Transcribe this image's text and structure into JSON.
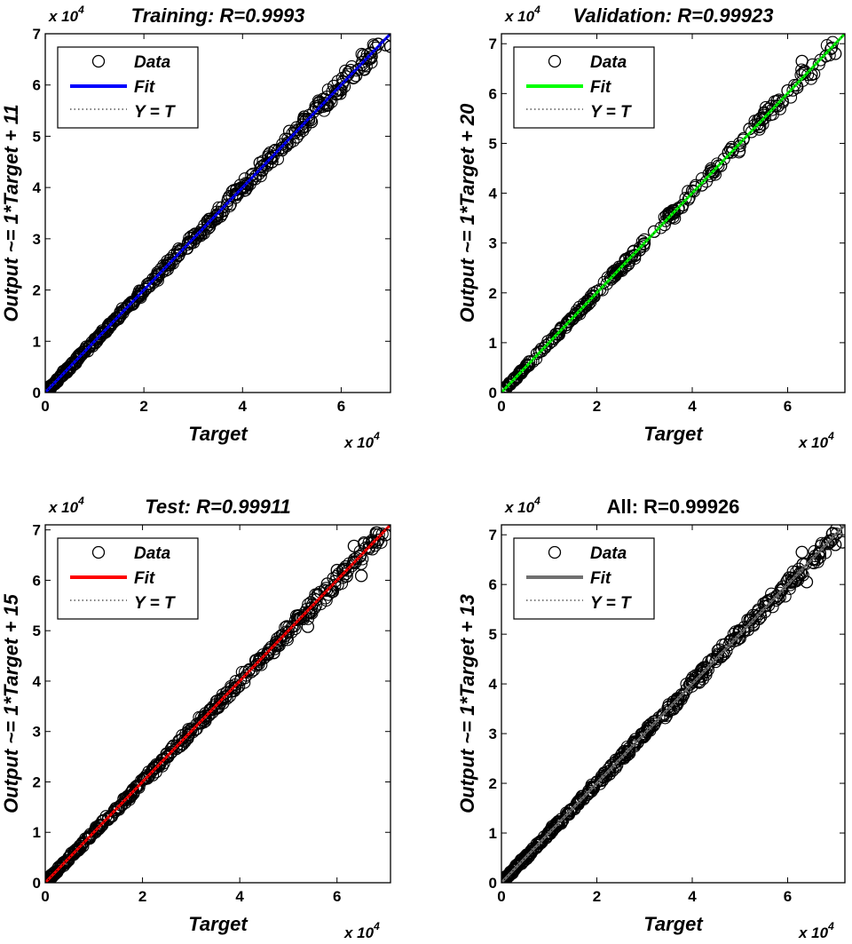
{
  "chart_data": [
    {
      "type": "scatter",
      "title": "Training: R=0.9993",
      "title_style": "italic",
      "xlabel": "Target",
      "ylabel": "Output ~= 1*Target + 11",
      "x_multiplier": "x 10",
      "y_multiplier": "x 10",
      "multiplier_exponent": "4",
      "xlim": [
        0,
        70000
      ],
      "ylim": [
        0,
        70000
      ],
      "xticks": [
        0,
        2,
        4,
        6
      ],
      "yticks": [
        0,
        1,
        2,
        3,
        4,
        5,
        6,
        7
      ],
      "fit": {
        "slope": 1,
        "intercept": 11,
        "color": "#0000ff"
      },
      "legend": {
        "placement": "top-left",
        "entries": [
          "Data",
          "Fit",
          "Y = T"
        ]
      },
      "points": [
        [
          300,
          320
        ],
        [
          1500,
          1480
        ],
        [
          3200,
          3250
        ],
        [
          5000,
          5030
        ],
        [
          7000,
          6950
        ],
        [
          9000,
          9100
        ],
        [
          11000,
          10900
        ],
        [
          13000,
          13150
        ],
        [
          15000,
          14900
        ],
        [
          17000,
          17200
        ],
        [
          19000,
          18800
        ],
        [
          21000,
          21200
        ],
        [
          23000,
          22800
        ],
        [
          25000,
          25300
        ],
        [
          27000,
          26700
        ],
        [
          29000,
          29300
        ],
        [
          31000,
          30600
        ],
        [
          33000,
          33400
        ],
        [
          35000,
          34700
        ],
        [
          37000,
          37400
        ],
        [
          39000,
          38600
        ],
        [
          40500,
          40200
        ],
        [
          42000,
          41600
        ],
        [
          43500,
          44800
        ],
        [
          45000,
          44300
        ],
        [
          46500,
          47200
        ],
        [
          48000,
          47300
        ],
        [
          49500,
          51000
        ],
        [
          51000,
          49800
        ],
        [
          52500,
          53800
        ],
        [
          54000,
          52800
        ],
        [
          55500,
          56500
        ],
        [
          57000,
          56000
        ],
        [
          58500,
          59800
        ],
        [
          60000,
          59000
        ],
        [
          61500,
          62500
        ],
        [
          63000,
          61800
        ],
        [
          64500,
          65800
        ],
        [
          66000,
          65200
        ],
        [
          67500,
          68000
        ],
        [
          69000,
          67800
        ],
        [
          70000,
          67500
        ]
      ]
    },
    {
      "type": "scatter",
      "title": "Validation: R=0.99923",
      "title_style": "italic",
      "xlabel": "Target",
      "ylabel": "Output ~= 1*Target + 20",
      "x_multiplier": "x 10",
      "y_multiplier": "x 10",
      "multiplier_exponent": "4",
      "xlim": [
        0,
        72000
      ],
      "ylim": [
        0,
        72000
      ],
      "xticks": [
        0,
        2,
        4,
        6
      ],
      "yticks": [
        0,
        1,
        2,
        3,
        4,
        5,
        6,
        7
      ],
      "fit": {
        "slope": 1,
        "intercept": 20,
        "color": "#00ff00"
      },
      "legend": {
        "placement": "top-left",
        "entries": [
          "Data",
          "Fit",
          "Y = T"
        ]
      },
      "points": [
        [
          400,
          380
        ],
        [
          2500,
          2600
        ],
        [
          5000,
          4900
        ],
        [
          8000,
          8200
        ],
        [
          11000,
          10800
        ],
        [
          14000,
          14300
        ],
        [
          17000,
          16700
        ],
        [
          20000,
          20300
        ],
        [
          23000,
          22700
        ],
        [
          26000,
          26400
        ],
        [
          29000,
          28600
        ],
        [
          32000,
          32300
        ],
        [
          35000,
          35400
        ],
        [
          38000,
          37600
        ],
        [
          40000,
          40500
        ],
        [
          42000,
          41600
        ],
        [
          44000,
          44500
        ],
        [
          46000,
          45500
        ],
        [
          48000,
          48800
        ],
        [
          50000,
          49500
        ],
        [
          52000,
          52900
        ],
        [
          54000,
          53300
        ],
        [
          56000,
          56900
        ],
        [
          58000,
          57500
        ],
        [
          60000,
          60600
        ],
        [
          62000,
          61200
        ],
        [
          63000,
          66500
        ],
        [
          65000,
          63800
        ],
        [
          68000,
          67500
        ],
        [
          70000,
          68000
        ]
      ]
    },
    {
      "type": "scatter",
      "title": "Test: R=0.99911",
      "title_style": "italic",
      "xlabel": "Target",
      "ylabel": "Output ~= 1*Target + 15",
      "x_multiplier": "x 10",
      "y_multiplier": "x 10",
      "multiplier_exponent": "4",
      "xlim": [
        0,
        71000
      ],
      "ylim": [
        0,
        71000
      ],
      "xticks": [
        0,
        2,
        4,
        6
      ],
      "yticks": [
        0,
        1,
        2,
        3,
        4,
        5,
        6,
        7
      ],
      "fit": {
        "slope": 1,
        "intercept": 15,
        "color": "#ff0000"
      },
      "legend": {
        "placement": "top-left",
        "entries": [
          "Data",
          "Fit",
          "Y = T"
        ]
      },
      "points": [
        [
          500,
          520
        ],
        [
          3000,
          2900
        ],
        [
          6000,
          6100
        ],
        [
          9000,
          8800
        ],
        [
          12000,
          12300
        ],
        [
          15000,
          14700
        ],
        [
          18000,
          18300
        ],
        [
          21000,
          20700
        ],
        [
          24000,
          24400
        ],
        [
          27000,
          26600
        ],
        [
          30000,
          30300
        ],
        [
          33000,
          32600
        ],
        [
          36000,
          36400
        ],
        [
          39000,
          38600
        ],
        [
          42000,
          42300
        ],
        [
          45000,
          44600
        ],
        [
          47000,
          45600
        ],
        [
          50000,
          49700
        ],
        [
          52000,
          53000
        ],
        [
          54000,
          50800
        ],
        [
          56000,
          57200
        ],
        [
          58000,
          59300
        ],
        [
          60000,
          62000
        ],
        [
          62000,
          60800
        ],
        [
          63500,
          66800
        ],
        [
          65000,
          60900
        ],
        [
          68500,
          68000
        ],
        [
          70000,
          69000
        ]
      ]
    },
    {
      "type": "scatter",
      "title": "All: R=0.99926",
      "title_style": "normal",
      "xlabel": "Target",
      "ylabel": "Output ~= 1*Target + 13",
      "x_multiplier": "x 10",
      "y_multiplier": "x 10",
      "multiplier_exponent": "4",
      "xlim": [
        0,
        72000
      ],
      "ylim": [
        0,
        72000
      ],
      "xticks": [
        0,
        2,
        4,
        6
      ],
      "yticks": [
        0,
        1,
        2,
        3,
        4,
        5,
        6,
        7
      ],
      "fit": {
        "slope": 1,
        "intercept": 13,
        "color": "#707070"
      },
      "legend": {
        "placement": "top-left",
        "entries": [
          "Data",
          "Fit",
          "Y = T"
        ]
      },
      "points": [
        [
          300,
          310
        ],
        [
          2000,
          1950
        ],
        [
          4000,
          4100
        ],
        [
          6000,
          5900
        ],
        [
          8000,
          8150
        ],
        [
          10000,
          9850
        ],
        [
          12000,
          12200
        ],
        [
          14000,
          13800
        ],
        [
          16000,
          16250
        ],
        [
          18000,
          17700
        ],
        [
          20000,
          20300
        ],
        [
          22000,
          21700
        ],
        [
          24000,
          24300
        ],
        [
          26000,
          25700
        ],
        [
          28000,
          28350
        ],
        [
          30000,
          29600
        ],
        [
          32000,
          32400
        ],
        [
          34000,
          33600
        ],
        [
          36000,
          36400
        ],
        [
          38000,
          37600
        ],
        [
          40000,
          40300
        ],
        [
          42000,
          41500
        ],
        [
          44000,
          44600
        ],
        [
          46000,
          45400
        ],
        [
          48000,
          48700
        ],
        [
          50000,
          49200
        ],
        [
          52000,
          52800
        ],
        [
          54000,
          53100
        ],
        [
          56000,
          56800
        ],
        [
          58000,
          57200
        ],
        [
          60000,
          60900
        ],
        [
          62000,
          61200
        ],
        [
          63000,
          66500
        ],
        [
          64000,
          60500
        ],
        [
          65500,
          65000
        ],
        [
          67000,
          67800
        ],
        [
          68500,
          68200
        ],
        [
          70000,
          68000
        ],
        [
          71500,
          68500
        ]
      ]
    }
  ]
}
